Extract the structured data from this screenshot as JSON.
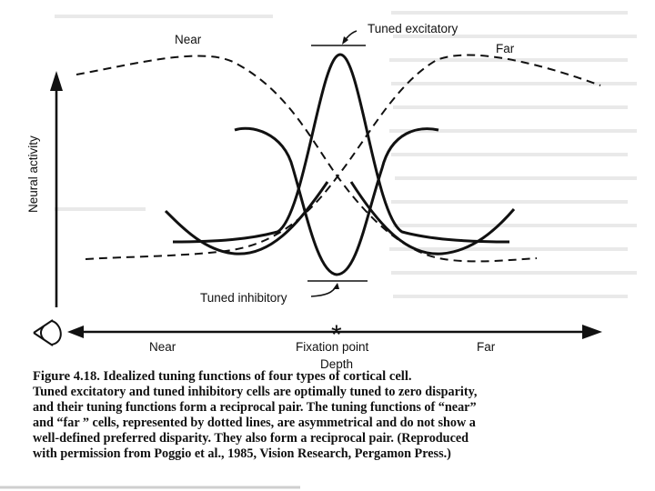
{
  "diagram": {
    "y_axis_label": "Neural activity",
    "x_axis_label": "Depth",
    "curve_labels": {
      "near": "Near",
      "far": "Far",
      "tuned_excitatory": "Tuned excitatory",
      "tuned_inhibitory": "Tuned inhibitory"
    },
    "depth_axis": {
      "near": "Near",
      "fixation_marker": "*",
      "fixation": "Fixation point",
      "far": "Far"
    }
  },
  "caption": {
    "title": "Figure 4.18. Idealized tuning functions of four types of cortical cell.",
    "lines": [
      "Tuned excitatory and tuned inhibitory cells are optimally tuned to zero disparity,",
      "and their tuning functions form a reciprocal pair. The tuning functions of “near”",
      "and “far ” cells, represented by dotted lines, are asymmetrical and do not show a",
      "well-defined preferred disparity. They also form a reciprocal pair. (Reproduced",
      "with permission from Poggio et al., 1985, Vision Research, Pergamon Press.)"
    ]
  }
}
